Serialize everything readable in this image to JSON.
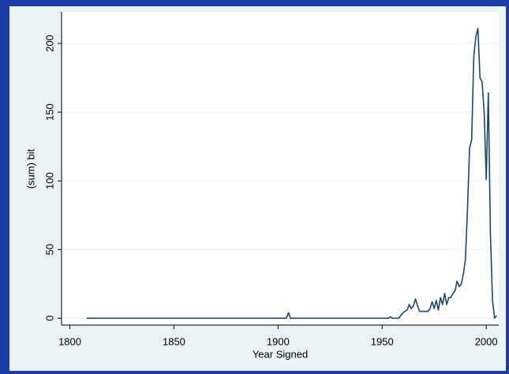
{
  "chart_data": {
    "type": "line",
    "x_label": "Year Signed",
    "y_label": "(sum) bit",
    "x": [
      1808,
      1904,
      1905,
      1906,
      1953,
      1954,
      1955,
      1958,
      1960,
      1962,
      1963,
      1964,
      1965,
      1966,
      1967,
      1968,
      1972,
      1973,
      1974,
      1975,
      1976,
      1977,
      1978,
      1979,
      1980,
      1981,
      1982,
      1983,
      1984,
      1985,
      1986,
      1987,
      1988,
      1989,
      1990,
      1991,
      1992,
      1993,
      1994,
      1995,
      1996,
      1997,
      1998,
      1999,
      2000,
      2001,
      2002,
      2003,
      2004,
      2005
    ],
    "series": [
      {
        "color": "#1a476f",
        "values": [
          0,
          0,
          4,
          0,
          0,
          1,
          0,
          0,
          4,
          6,
          10,
          7,
          9,
          14,
          9,
          5,
          5,
          7,
          12,
          7,
          13,
          6,
          15,
          10,
          18,
          10,
          15,
          15,
          18,
          20,
          27,
          23,
          25,
          32,
          43,
          80,
          124,
          130,
          190,
          205,
          211,
          175,
          172,
          150,
          101,
          164,
          62,
          13,
          0,
          2
        ]
      }
    ],
    "xlim": [
      1796,
      2006
    ],
    "xticks": [
      1800,
      1850,
      1900,
      1950,
      2000
    ],
    "ylim": [
      -5,
      223
    ],
    "yticks": [
      0,
      50,
      100,
      150,
      200
    ],
    "grid": true
  }
}
